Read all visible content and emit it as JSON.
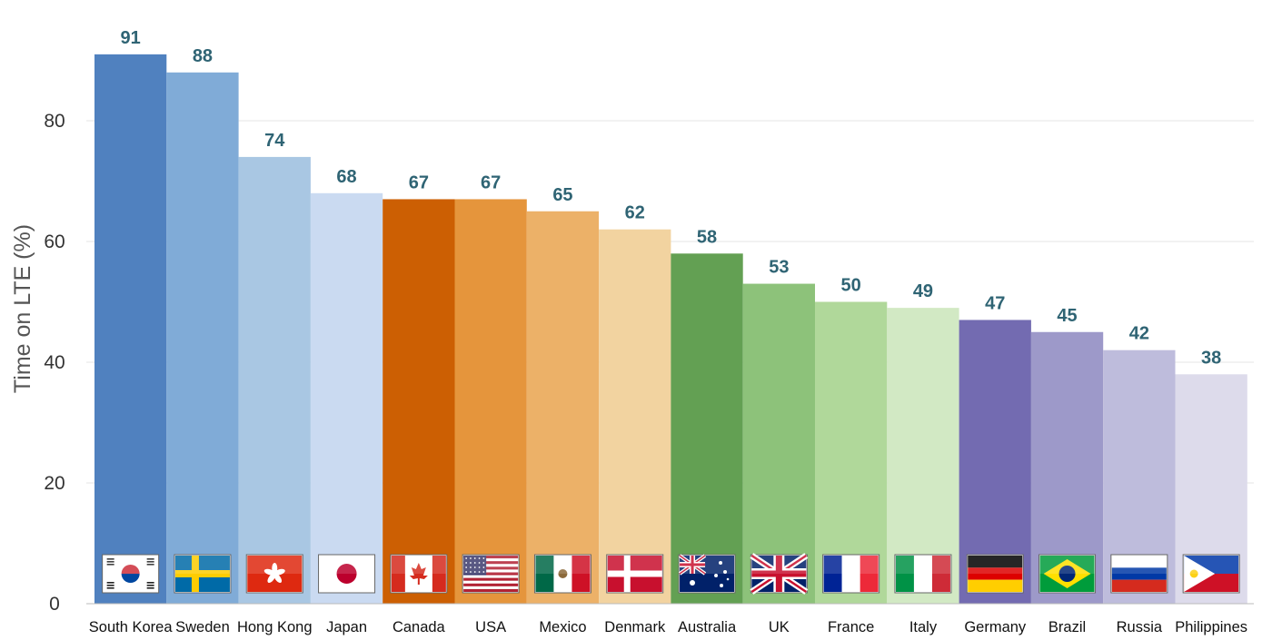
{
  "chart_data": {
    "type": "bar",
    "ylabel": "Time on LTE (%)",
    "xlabel": "",
    "ylim": [
      0,
      95
    ],
    "yticks": [
      0,
      20,
      40,
      60,
      80
    ],
    "grid": true,
    "categories": [
      "South Korea",
      "Sweden",
      "Hong Kong",
      "Japan",
      "Canada",
      "USA",
      "Mexico",
      "Denmark",
      "Australia",
      "UK",
      "France",
      "Italy",
      "Germany",
      "Brazil",
      "Russia",
      "Philippines"
    ],
    "values": [
      91,
      88,
      74,
      68,
      67,
      67,
      65,
      62,
      58,
      53,
      50,
      49,
      47,
      45,
      42,
      38
    ],
    "bar_colors": [
      "#5081bf",
      "#80abd7",
      "#a9c7e3",
      "#cadaf1",
      "#cc5f03",
      "#e5953c",
      "#ecb168",
      "#f2d3a0",
      "#63a053",
      "#8dc27a",
      "#b0d89a",
      "#d2e9c4",
      "#736bb1",
      "#9d99c9",
      "#bebcdc",
      "#dddbeb"
    ],
    "value_label_color": "#2f6474",
    "flags": [
      "south-korea-flag",
      "sweden-flag",
      "hong-kong-flag",
      "japan-flag",
      "canada-flag",
      "usa-flag",
      "mexico-flag",
      "denmark-flag",
      "australia-flag",
      "uk-flag",
      "france-flag",
      "italy-flag",
      "germany-flag",
      "brazil-flag",
      "russia-flag",
      "philippines-flag"
    ]
  }
}
